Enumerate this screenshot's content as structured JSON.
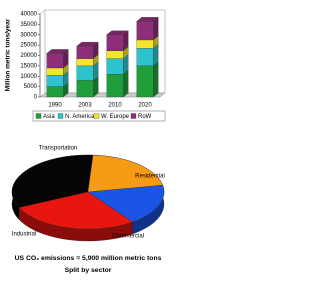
{
  "chart_data": [
    {
      "type": "bar",
      "stacked": true,
      "ylabel": "Million metric tons/year",
      "categories": [
        "1990",
        "2003",
        "2010",
        "2020"
      ],
      "series": [
        {
          "name": "Asia",
          "color": "#1f9f3a",
          "values": [
            5000,
            8000,
            11000,
            15000
          ]
        },
        {
          "name": "N. America",
          "color": "#2cc4cc",
          "values": [
            5500,
            7000,
            7500,
            8500
          ]
        },
        {
          "name": "W. Europe",
          "color": "#f2e52a",
          "values": [
            3500,
            3500,
            3800,
            4000
          ]
        },
        {
          "name": "RoW",
          "color": "#8e2d78",
          "values": [
            7000,
            6000,
            7700,
            9000
          ]
        }
      ],
      "ylim": [
        0,
        40000
      ],
      "yticks": [
        0,
        5000,
        10000,
        15000,
        20000,
        25000,
        30000,
        35000,
        40000
      ],
      "legend": "bottom"
    },
    {
      "type": "pie",
      "title": "US CO₂ emissions = 5,900 million metric tons",
      "subtitle": "Split by sector",
      "categories": [
        "Transportation",
        "Residential",
        "Commercial",
        "Industrial"
      ],
      "values": [
        33,
        21,
        18,
        28
      ],
      "colors": [
        "#050505",
        "#f79a14",
        "#1a55e6",
        "#e8160f"
      ]
    }
  ]
}
